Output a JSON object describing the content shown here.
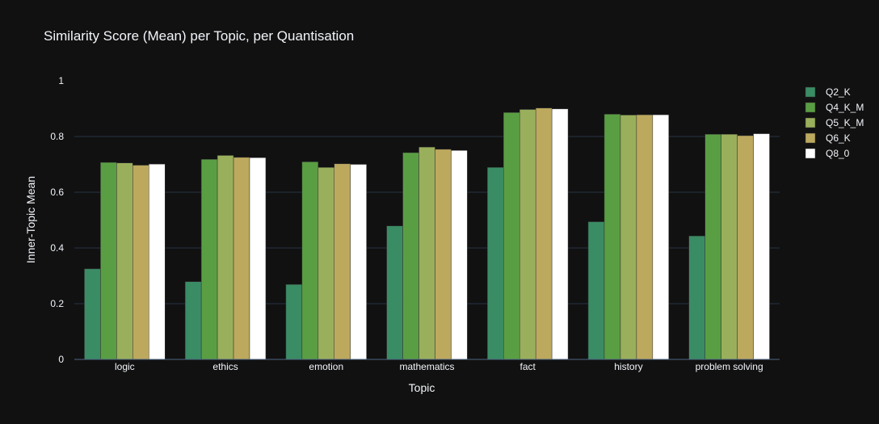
{
  "chart_data": {
    "type": "bar",
    "title": "Similarity Score (Mean) per Topic, per Quantisation",
    "xlabel": "Topic",
    "ylabel": "Inner-Topic Mean",
    "ylim": [
      0,
      1
    ],
    "yticks": [
      {
        "value": 0,
        "label": "0"
      },
      {
        "value": 0.2,
        "label": "0.2"
      },
      {
        "value": 0.4,
        "label": "0.4"
      },
      {
        "value": 0.6,
        "label": "0.6"
      },
      {
        "value": 0.8,
        "label": "0.8"
      },
      {
        "value": 1,
        "label": "1"
      }
    ],
    "grid": true,
    "legend_position": "top-right",
    "categories": [
      "logic",
      "ethics",
      "emotion",
      "mathematics",
      "fact",
      "history",
      "problem solving"
    ],
    "series": [
      {
        "name": "Q2_K",
        "color": "#3a8c64",
        "values": [
          0.325,
          0.279,
          0.269,
          0.479,
          0.689,
          0.494,
          0.443
        ]
      },
      {
        "name": "Q4_K_M",
        "color": "#5a9e43",
        "values": [
          0.707,
          0.718,
          0.709,
          0.742,
          0.886,
          0.88,
          0.808
        ]
      },
      {
        "name": "Q5_K_M",
        "color": "#9aaf5b",
        "values": [
          0.705,
          0.732,
          0.689,
          0.762,
          0.897,
          0.877,
          0.808
        ]
      },
      {
        "name": "Q6_K",
        "color": "#bda95e",
        "values": [
          0.697,
          0.725,
          0.702,
          0.754,
          0.902,
          0.878,
          0.803
        ]
      },
      {
        "name": "Q8_0",
        "color": "#ffffff",
        "values": [
          0.701,
          0.724,
          0.7,
          0.75,
          0.899,
          0.878,
          0.81
        ]
      }
    ]
  }
}
